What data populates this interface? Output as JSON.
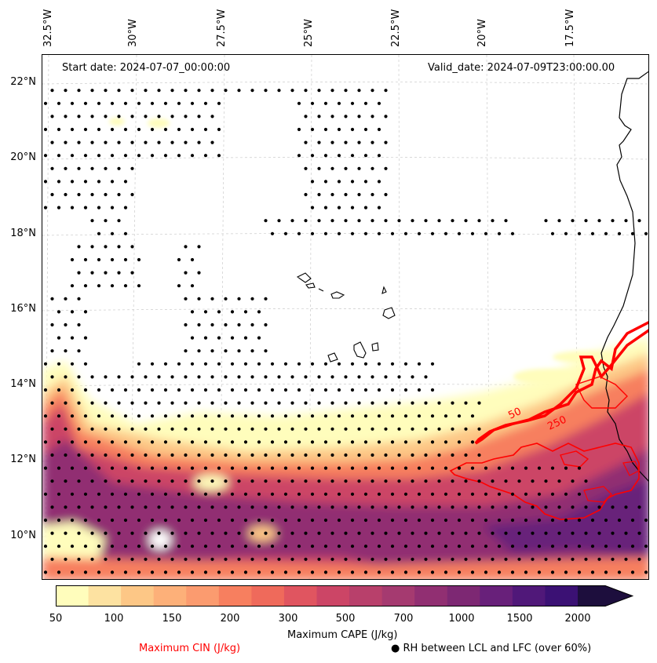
{
  "header": {
    "start_date": "Start date: 2024-07-07_00:00:00",
    "valid_date": "Valid_date: 2024-07-09T23:00:00.00"
  },
  "axes": {
    "longitude_labels": [
      "32.5°W",
      "30°W",
      "27.5°W",
      "25°W",
      "22.5°W",
      "20°W",
      "17.5°W"
    ],
    "latitude_labels": [
      "22°N",
      "20°N",
      "18°N",
      "16°N",
      "14°N",
      "12°N",
      "10°N"
    ]
  },
  "colorbar": {
    "tick_labels": [
      "50",
      "100",
      "150",
      "200",
      "300",
      "500",
      "700",
      "1000",
      "1500",
      "2000"
    ],
    "colors": [
      "#fffdbc",
      "#fde2a1",
      "#fdc786",
      "#fdb079",
      "#fb9b6f",
      "#f77f5f",
      "#ef6a5b",
      "#e05560",
      "#cc4566",
      "#b8406b",
      "#a53a70",
      "#912f72",
      "#7d2873",
      "#68207a",
      "#501879",
      "#3b1174",
      "#1d0e3d"
    ],
    "label": "Maximum CAPE (J/kg)"
  },
  "legend": {
    "cin_label": "Maximum CIN (J/kg)",
    "cin_color": "#ff0000",
    "rh_label": "RH between LCL and LFC (over 60%)",
    "rh_marker": "●"
  },
  "contour_labels": [
    "50",
    "250"
  ]
}
